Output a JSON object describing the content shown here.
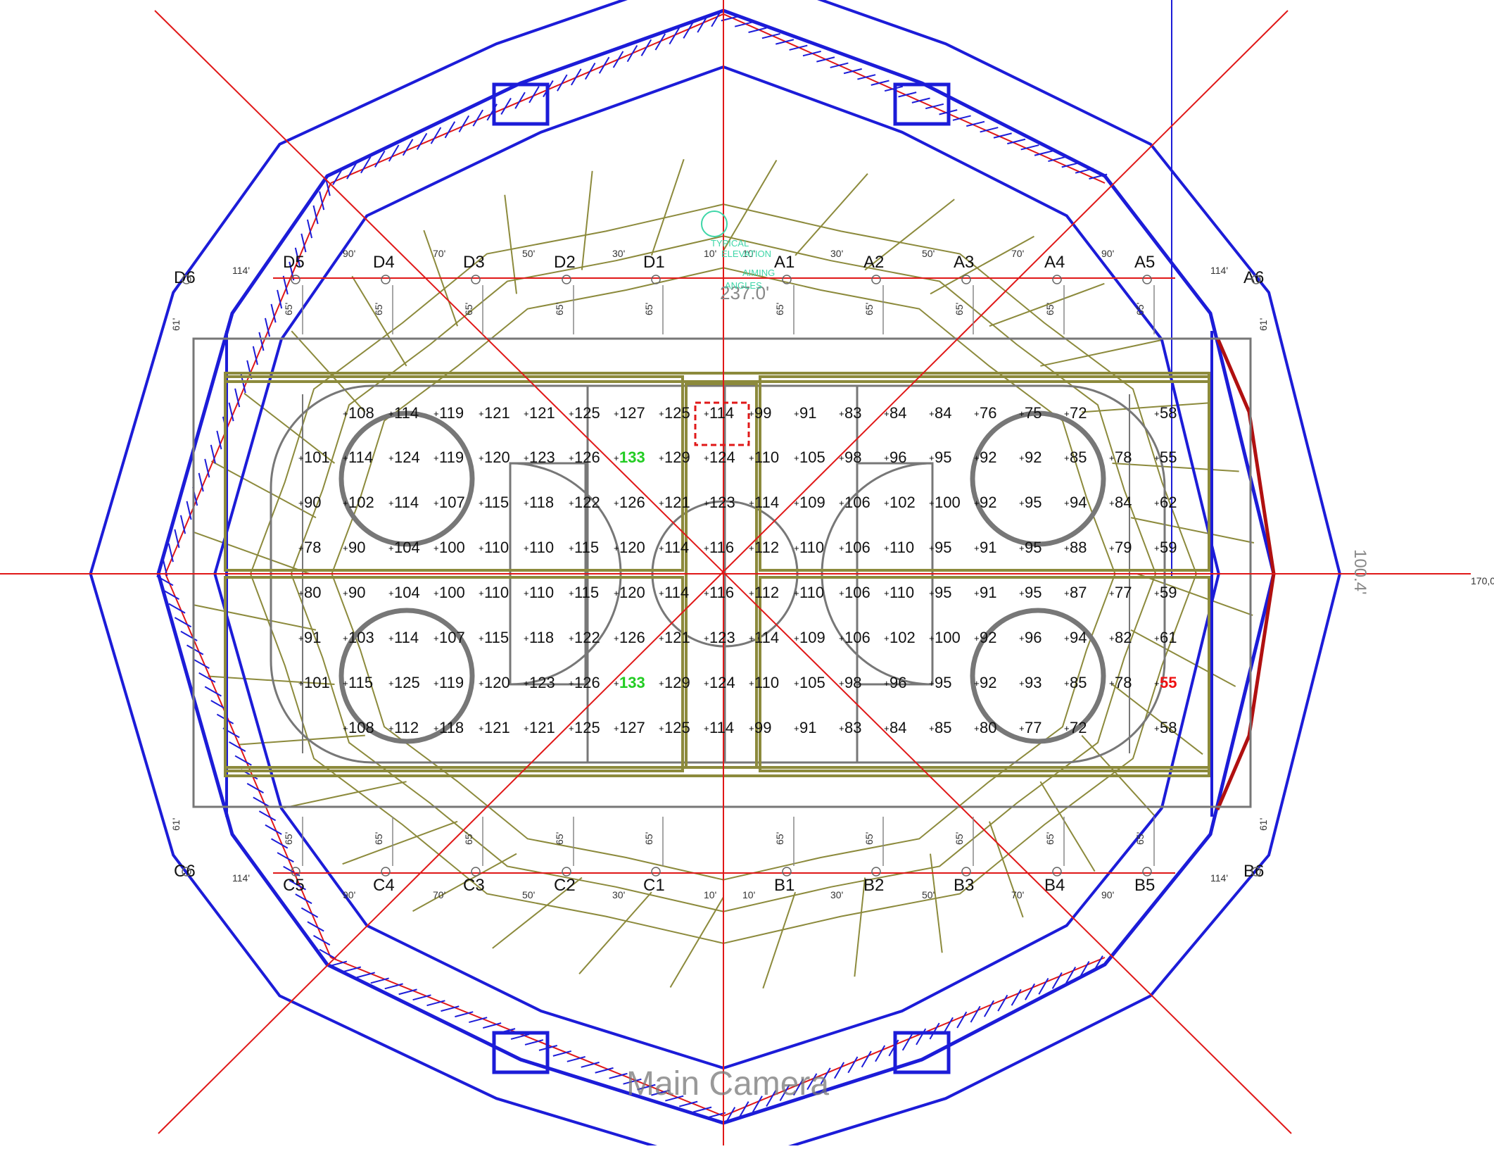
{
  "colors": {
    "olive": "#8c8a3c",
    "blue": "#1c1cd8",
    "red": "#e01818",
    "grid_gray": "#777777",
    "text": "#111111",
    "green_max": "#22cc22",
    "red_min": "#ee1111",
    "cyan": "#3fd6a8"
  },
  "top_labels": [
    "D6",
    "D5",
    "D4",
    "D3",
    "D2",
    "D1",
    "A1",
    "A2",
    "A3",
    "A4",
    "A5",
    "A6"
  ],
  "bottom_labels": [
    "C6",
    "C5",
    "C4",
    "C3",
    "C2",
    "C1",
    "B1",
    "B2",
    "B3",
    "B4",
    "B5",
    "B6"
  ],
  "top_spacing": [
    "114'",
    "90'",
    "70'",
    "50'",
    "30'",
    "10'",
    "10'",
    "30'",
    "50'",
    "70'",
    "90'",
    "114'"
  ],
  "bottom_spacing": [
    "114'",
    "90'",
    "70'",
    "50'",
    "30'",
    "10'",
    "10'",
    "30'",
    "50'",
    "70'",
    "90'",
    "114'"
  ],
  "height_label": "65'",
  "side_height_label": "61'",
  "overall_length": "237.0'",
  "overall_width": "100.4'",
  "side_coordinate": "170,0",
  "main_camera": "Main Camera",
  "focus_note": [
    "TYPICAL",
    "ELEVATION",
    "AIMING",
    "ANGLES"
  ],
  "grid_values": [
    [
      "108",
      "114",
      "119",
      "121",
      "121",
      "125",
      "127",
      "125",
      "114",
      "99",
      "91",
      "83",
      "84",
      "84",
      "76",
      "75",
      "72",
      "58"
    ],
    [
      "101",
      "114",
      "124",
      "119",
      "120",
      "123",
      "126",
      "133",
      "129",
      "124",
      "110",
      "105",
      "98",
      "96",
      "95",
      "92",
      "92",
      "85",
      "78",
      "55"
    ],
    [
      "90",
      "102",
      "114",
      "107",
      "115",
      "118",
      "122",
      "126",
      "121",
      "123",
      "114",
      "109",
      "106",
      "102",
      "100",
      "92",
      "95",
      "94",
      "84",
      "62"
    ],
    [
      "78",
      "90",
      "104",
      "100",
      "110",
      "110",
      "115",
      "120",
      "114",
      "116",
      "112",
      "110",
      "106",
      "110",
      "95",
      "91",
      "95",
      "88",
      "79",
      "59"
    ],
    [
      "80",
      "90",
      "104",
      "100",
      "110",
      "110",
      "115",
      "120",
      "114",
      "116",
      "112",
      "110",
      "106",
      "110",
      "95",
      "91",
      "95",
      "87",
      "77",
      "59"
    ],
    [
      "91",
      "103",
      "114",
      "107",
      "115",
      "118",
      "122",
      "126",
      "121",
      "123",
      "114",
      "109",
      "106",
      "102",
      "100",
      "92",
      "96",
      "94",
      "82",
      "61"
    ],
    [
      "101",
      "115",
      "125",
      "119",
      "120",
      "123",
      "126",
      "133",
      "129",
      "124",
      "110",
      "105",
      "98",
      "96",
      "95",
      "92",
      "93",
      "85",
      "78",
      "55"
    ],
    [
      "108",
      "112",
      "118",
      "121",
      "121",
      "125",
      "127",
      "125",
      "114",
      "99",
      "91",
      "83",
      "84",
      "85",
      "80",
      "77",
      "72",
      "58"
    ]
  ],
  "max_value": "133",
  "min_value": "55"
}
